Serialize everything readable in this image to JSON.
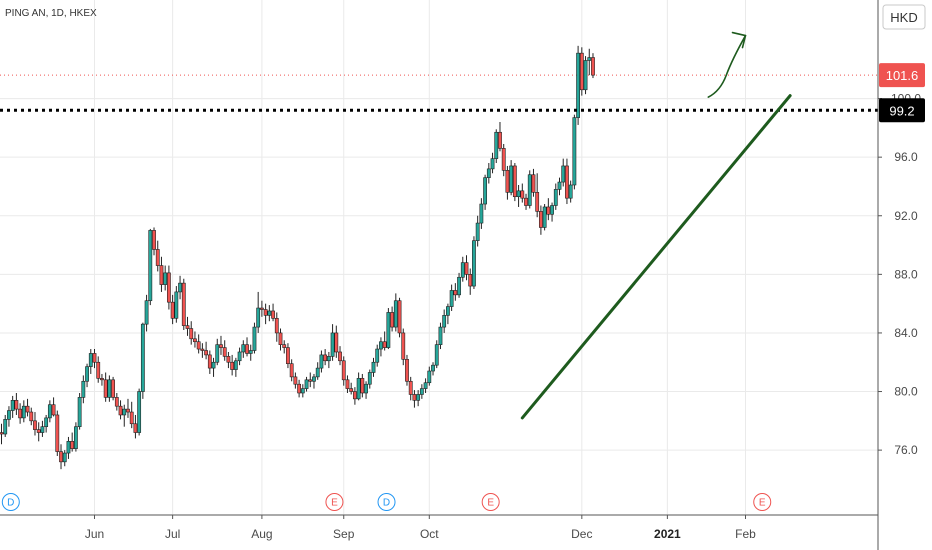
{
  "header": {
    "symbol_label": "PING AN, 1D, HKEX"
  },
  "currency_label": "HKD",
  "price_badges": [
    {
      "label": "101.6",
      "value": 101.6,
      "color": "#ef5350",
      "text_color": "#ffffff"
    },
    {
      "label": "99.2",
      "value": 99.2,
      "color": "#000000",
      "text_color": "#ffffff"
    }
  ],
  "chart_data": {
    "type": "candlestick",
    "y_range": [
      72.8,
      105.5
    ],
    "x_range": [
      0,
      235
    ],
    "grid": true,
    "y_ticks": [
      {
        "label": "76.0",
        "value": 76
      },
      {
        "label": "80.0",
        "value": 80
      },
      {
        "label": "84.0",
        "value": 84
      },
      {
        "label": "88.0",
        "value": 88
      },
      {
        "label": "92.0",
        "value": 92
      },
      {
        "label": "96.0",
        "value": 96
      },
      {
        "label": "100.0",
        "value": 100
      }
    ],
    "x_ticks": [
      {
        "label": "Jun",
        "x": 25,
        "bold": false
      },
      {
        "label": "Jul",
        "x": 46,
        "bold": false
      },
      {
        "label": "Aug",
        "x": 70,
        "bold": false
      },
      {
        "label": "Sep",
        "x": 92,
        "bold": false
      },
      {
        "label": "Oct",
        "x": 115,
        "bold": false
      },
      {
        "label": "Dec",
        "x": 156,
        "bold": false
      },
      {
        "label": "2021",
        "x": 179,
        "bold": true
      },
      {
        "label": "Feb",
        "x": 200,
        "bold": false
      }
    ],
    "series_colors": {
      "up": "#26a69a",
      "down": "#ef5350",
      "outline": "#222222"
    },
    "candles": [
      [
        77.2,
        77.8,
        76.4,
        77.1
      ],
      [
        77.1,
        78.4,
        76.9,
        78.1
      ],
      [
        78.1,
        79.0,
        77.6,
        78.7
      ],
      [
        78.7,
        79.7,
        78.2,
        79.4
      ],
      [
        79.4,
        79.9,
        78.4,
        78.8
      ],
      [
        78.8,
        79.2,
        77.8,
        78.2
      ],
      [
        78.2,
        79.4,
        77.9,
        79.0
      ],
      [
        79.0,
        79.5,
        78.3,
        78.6
      ],
      [
        78.6,
        78.9,
        77.7,
        78.0
      ],
      [
        78.0,
        78.6,
        77.0,
        77.4
      ],
      [
        77.4,
        77.9,
        76.6,
        77.2
      ],
      [
        77.2,
        78.0,
        76.9,
        77.6
      ],
      [
        77.6,
        78.4,
        77.2,
        78.2
      ],
      [
        78.2,
        79.4,
        77.9,
        79.1
      ],
      [
        79.1,
        79.6,
        78.3,
        78.4
      ],
      [
        78.4,
        78.7,
        75.6,
        75.9
      ],
      [
        75.9,
        76.4,
        74.7,
        75.2
      ],
      [
        75.2,
        76.0,
        74.9,
        75.8
      ],
      [
        75.8,
        76.9,
        75.4,
        76.6
      ],
      [
        76.6,
        77.2,
        75.9,
        76.1
      ],
      [
        76.1,
        77.9,
        75.9,
        77.6
      ],
      [
        77.6,
        79.9,
        77.4,
        79.6
      ],
      [
        79.6,
        81.1,
        79.2,
        80.7
      ],
      [
        80.7,
        81.9,
        80.3,
        81.7
      ],
      [
        81.7,
        82.9,
        81.2,
        82.6
      ],
      [
        82.6,
        82.9,
        81.6,
        82.0
      ],
      [
        82.0,
        82.4,
        80.6,
        80.9
      ],
      [
        80.9,
        81.2,
        80.4,
        80.8
      ],
      [
        80.8,
        81.3,
        79.3,
        79.6
      ],
      [
        79.6,
        81.1,
        79.3,
        80.8
      ],
      [
        80.8,
        81.0,
        79.4,
        79.6
      ],
      [
        79.6,
        79.9,
        78.7,
        79.0
      ],
      [
        79.0,
        79.4,
        78.1,
        78.4
      ],
      [
        78.4,
        79.1,
        77.6,
        78.8
      ],
      [
        78.8,
        79.5,
        78.2,
        78.6
      ],
      [
        78.6,
        79.3,
        77.5,
        77.8
      ],
      [
        77.8,
        78.4,
        76.8,
        77.2
      ],
      [
        77.2,
        80.2,
        77.0,
        80.0
      ],
      [
        80.0,
        84.7,
        79.5,
        84.6
      ],
      [
        84.6,
        86.6,
        84.1,
        86.2
      ],
      [
        86.2,
        91.1,
        85.9,
        91.0
      ],
      [
        91.0,
        91.2,
        89.3,
        89.7
      ],
      [
        89.7,
        90.3,
        88.2,
        88.6
      ],
      [
        88.6,
        89.2,
        86.8,
        87.3
      ],
      [
        87.3,
        88.6,
        86.9,
        88.1
      ],
      [
        88.1,
        88.6,
        85.6,
        86.1
      ],
      [
        86.1,
        86.6,
        84.6,
        85.0
      ],
      [
        85.0,
        87.2,
        84.7,
        86.8
      ],
      [
        86.8,
        87.9,
        86.3,
        87.4
      ],
      [
        87.4,
        87.7,
        84.2,
        84.5
      ],
      [
        84.5,
        85.1,
        83.8,
        84.3
      ],
      [
        84.3,
        84.8,
        83.2,
        83.6
      ],
      [
        83.6,
        84.1,
        83.0,
        83.4
      ],
      [
        83.4,
        83.9,
        82.6,
        82.9
      ],
      [
        82.9,
        83.3,
        82.3,
        82.8
      ],
      [
        82.8,
        83.4,
        82.2,
        82.5
      ],
      [
        82.5,
        82.8,
        81.2,
        81.6
      ],
      [
        81.6,
        82.3,
        81.0,
        82.0
      ],
      [
        82.0,
        83.6,
        81.8,
        83.2
      ],
      [
        83.2,
        83.8,
        82.5,
        83.0
      ],
      [
        83.0,
        83.5,
        82.1,
        82.4
      ],
      [
        82.4,
        82.7,
        81.6,
        82.0
      ],
      [
        82.0,
        82.5,
        81.1,
        81.5
      ],
      [
        81.5,
        82.3,
        81.0,
        82.1
      ],
      [
        82.1,
        83.0,
        81.8,
        82.7
      ],
      [
        82.7,
        83.5,
        82.3,
        83.2
      ],
      [
        83.2,
        83.7,
        82.4,
        82.6
      ],
      [
        82.6,
        83.2,
        82.1,
        82.8
      ],
      [
        82.8,
        84.7,
        82.6,
        84.4
      ],
      [
        84.4,
        86.8,
        84.0,
        85.7
      ],
      [
        85.7,
        86.2,
        85.1,
        85.6
      ],
      [
        85.6,
        86.0,
        84.6,
        85.2
      ],
      [
        85.2,
        85.9,
        84.8,
        85.5
      ],
      [
        85.5,
        86.0,
        84.8,
        85.0
      ],
      [
        85.0,
        85.4,
        83.4,
        84.0
      ],
      [
        84.0,
        84.3,
        82.8,
        83.2
      ],
      [
        83.2,
        83.5,
        82.6,
        83.0
      ],
      [
        83.0,
        83.3,
        81.6,
        81.9
      ],
      [
        81.9,
        82.2,
        80.7,
        81.0
      ],
      [
        81.0,
        81.3,
        80.2,
        80.5
      ],
      [
        80.5,
        80.8,
        79.6,
        79.9
      ],
      [
        79.9,
        80.5,
        79.6,
        80.2
      ],
      [
        80.2,
        81.0,
        80.0,
        80.8
      ],
      [
        80.8,
        81.3,
        80.3,
        80.7
      ],
      [
        80.7,
        81.2,
        80.2,
        81.0
      ],
      [
        81.0,
        82.0,
        80.8,
        81.6
      ],
      [
        81.6,
        82.8,
        81.3,
        82.5
      ],
      [
        82.5,
        82.9,
        81.8,
        82.1
      ],
      [
        82.1,
        82.7,
        81.6,
        82.4
      ],
      [
        82.4,
        84.6,
        82.1,
        84.0
      ],
      [
        84.0,
        84.5,
        82.3,
        82.7
      ],
      [
        82.7,
        83.1,
        81.8,
        82.1
      ],
      [
        82.1,
        82.4,
        80.4,
        80.8
      ],
      [
        80.8,
        81.1,
        79.9,
        80.2
      ],
      [
        80.2,
        80.6,
        79.8,
        80.0
      ],
      [
        80.0,
        80.3,
        79.1,
        79.5
      ],
      [
        79.5,
        81.3,
        79.4,
        80.9
      ],
      [
        80.9,
        81.2,
        79.6,
        79.9
      ],
      [
        79.9,
        80.7,
        79.5,
        80.5
      ],
      [
        80.5,
        81.5,
        80.2,
        81.3
      ],
      [
        81.3,
        82.3,
        81.0,
        82.0
      ],
      [
        82.0,
        83.2,
        81.7,
        82.9
      ],
      [
        82.9,
        83.7,
        82.4,
        83.4
      ],
      [
        83.4,
        84.1,
        82.8,
        83.0
      ],
      [
        83.0,
        85.7,
        82.9,
        85.4
      ],
      [
        85.4,
        85.8,
        84.1,
        84.4
      ],
      [
        84.4,
        86.7,
        84.1,
        86.2
      ],
      [
        86.2,
        86.4,
        83.7,
        84.0
      ],
      [
        84.0,
        84.3,
        81.8,
        82.2
      ],
      [
        82.2,
        82.5,
        80.4,
        80.7
      ],
      [
        80.7,
        81.0,
        79.4,
        79.8
      ],
      [
        79.8,
        80.1,
        78.9,
        79.4
      ],
      [
        79.4,
        80.1,
        79.0,
        79.8
      ],
      [
        79.8,
        80.5,
        79.5,
        80.2
      ],
      [
        80.2,
        80.9,
        79.9,
        80.6
      ],
      [
        80.6,
        81.7,
        80.4,
        81.4
      ],
      [
        81.4,
        82.0,
        81.1,
        81.8
      ],
      [
        81.8,
        83.5,
        81.6,
        83.2
      ],
      [
        83.2,
        84.7,
        82.9,
        84.4
      ],
      [
        84.4,
        85.6,
        84.0,
        85.2
      ],
      [
        85.2,
        86.0,
        84.6,
        85.8
      ],
      [
        85.8,
        87.3,
        85.5,
        86.9
      ],
      [
        86.9,
        87.4,
        86.2,
        86.6
      ],
      [
        86.6,
        88.1,
        86.4,
        87.8
      ],
      [
        87.8,
        89.2,
        87.5,
        88.8
      ],
      [
        88.8,
        89.3,
        87.6,
        88.0
      ],
      [
        88.0,
        88.4,
        86.6,
        87.2
      ],
      [
        87.2,
        90.6,
        87.0,
        90.3
      ],
      [
        90.3,
        92.0,
        89.9,
        91.5
      ],
      [
        91.5,
        93.2,
        91.1,
        92.8
      ],
      [
        92.8,
        94.8,
        92.4,
        94.6
      ],
      [
        94.6,
        95.6,
        94.2,
        95.2
      ],
      [
        95.2,
        96.3,
        94.9,
        95.9
      ],
      [
        95.9,
        97.9,
        95.6,
        97.7
      ],
      [
        97.7,
        98.4,
        96.4,
        96.6
      ],
      [
        96.6,
        96.9,
        94.7,
        95.1
      ],
      [
        95.1,
        95.4,
        93.1,
        93.6
      ],
      [
        93.6,
        95.8,
        93.4,
        95.4
      ],
      [
        95.4,
        95.6,
        93.0,
        93.3
      ],
      [
        93.3,
        94.1,
        92.6,
        93.7
      ],
      [
        93.7,
        94.2,
        92.9,
        93.2
      ],
      [
        93.2,
        93.5,
        92.4,
        92.7
      ],
      [
        92.7,
        95.1,
        92.5,
        94.8
      ],
      [
        94.8,
        95.2,
        93.3,
        93.6
      ],
      [
        93.6,
        94.9,
        91.9,
        92.3
      ],
      [
        92.3,
        92.7,
        90.7,
        91.2
      ],
      [
        91.2,
        92.8,
        91.0,
        92.6
      ],
      [
        92.6,
        93.2,
        91.7,
        92.1
      ],
      [
        92.1,
        92.9,
        91.6,
        92.7
      ],
      [
        92.7,
        94.2,
        92.4,
        93.8
      ],
      [
        93.8,
        94.6,
        93.4,
        94.3
      ],
      [
        94.3,
        95.9,
        94.0,
        95.4
      ],
      [
        95.4,
        95.9,
        92.8,
        93.2
      ],
      [
        93.2,
        94.4,
        92.9,
        94.1
      ],
      [
        94.1,
        98.9,
        93.8,
        98.7
      ],
      [
        98.7,
        103.6,
        98.2,
        103.1
      ],
      [
        103.1,
        103.5,
        100.2,
        100.6
      ],
      [
        100.6,
        102.9,
        100.3,
        102.6
      ],
      [
        102.6,
        103.4,
        101.6,
        102.8
      ],
      [
        102.8,
        103.1,
        101.4,
        101.6
      ]
    ],
    "annotations": {
      "support_line": {
        "from": {
          "x": 140,
          "y": 78.2
        },
        "to": {
          "x": 212,
          "y": 100.2
        },
        "color": "#1e5b1e"
      },
      "arrow": {
        "from": {
          "x": 190,
          "y": 100.1
        },
        "to": {
          "x": 200,
          "y": 104.3
        },
        "color": "#1e5b1e"
      },
      "horizontal_level": {
        "value": 99.2,
        "style": "dotted",
        "color": "#000000"
      },
      "last_price_line": {
        "value": 101.6,
        "color": "#ef5350"
      }
    },
    "event_markers": [
      {
        "label": "D",
        "x": 2.5,
        "kind": "dividend"
      },
      {
        "label": "E",
        "x": 89.5,
        "kind": "earnings"
      },
      {
        "label": "D",
        "x": 103.5,
        "kind": "dividend"
      },
      {
        "label": "E",
        "x": 131.5,
        "kind": "earnings"
      },
      {
        "label": "E",
        "x": 204.5,
        "kind": "earnings"
      }
    ]
  }
}
